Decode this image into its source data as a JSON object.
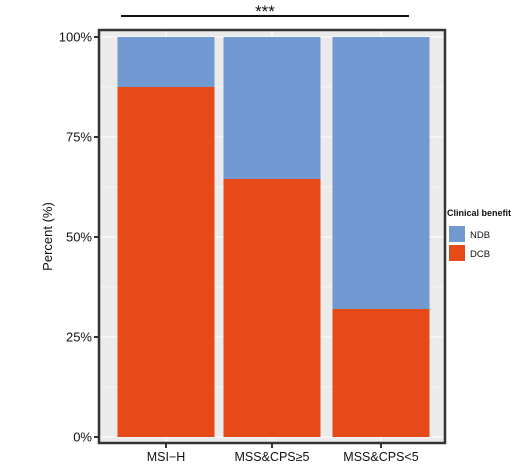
{
  "chart_data": {
    "type": "bar",
    "stacked": true,
    "title": "",
    "xlabel": "",
    "ylabel": "Percent (%)",
    "ylim": [
      0,
      100
    ],
    "yticks": [
      "0%",
      "25%",
      "50%",
      "75%",
      "100%"
    ],
    "ytick_values": [
      0,
      25,
      50,
      75,
      100
    ],
    "categories": [
      "MSI−H",
      "MSS&CPS≥5",
      "MSS&CPS<5"
    ],
    "series": [
      {
        "name": "DCB",
        "color": "#E64A19",
        "values": [
          87.5,
          64.5,
          32
        ]
      },
      {
        "name": "NDB",
        "color": "#7299D2",
        "values": [
          12.5,
          35.5,
          68
        ]
      }
    ],
    "legend": {
      "title": "Clinical benefit",
      "placement": "right",
      "entries": [
        {
          "label": "NDB",
          "color": "#7299D2"
        },
        {
          "label": "DCB",
          "color": "#E64A19"
        }
      ]
    },
    "annotation": {
      "text": "***",
      "spans": "MSI−H to MSS&CPS<5"
    },
    "grid": true,
    "panel_background": "#EBEBEB",
    "gridline_color": "#FFFFFF"
  }
}
